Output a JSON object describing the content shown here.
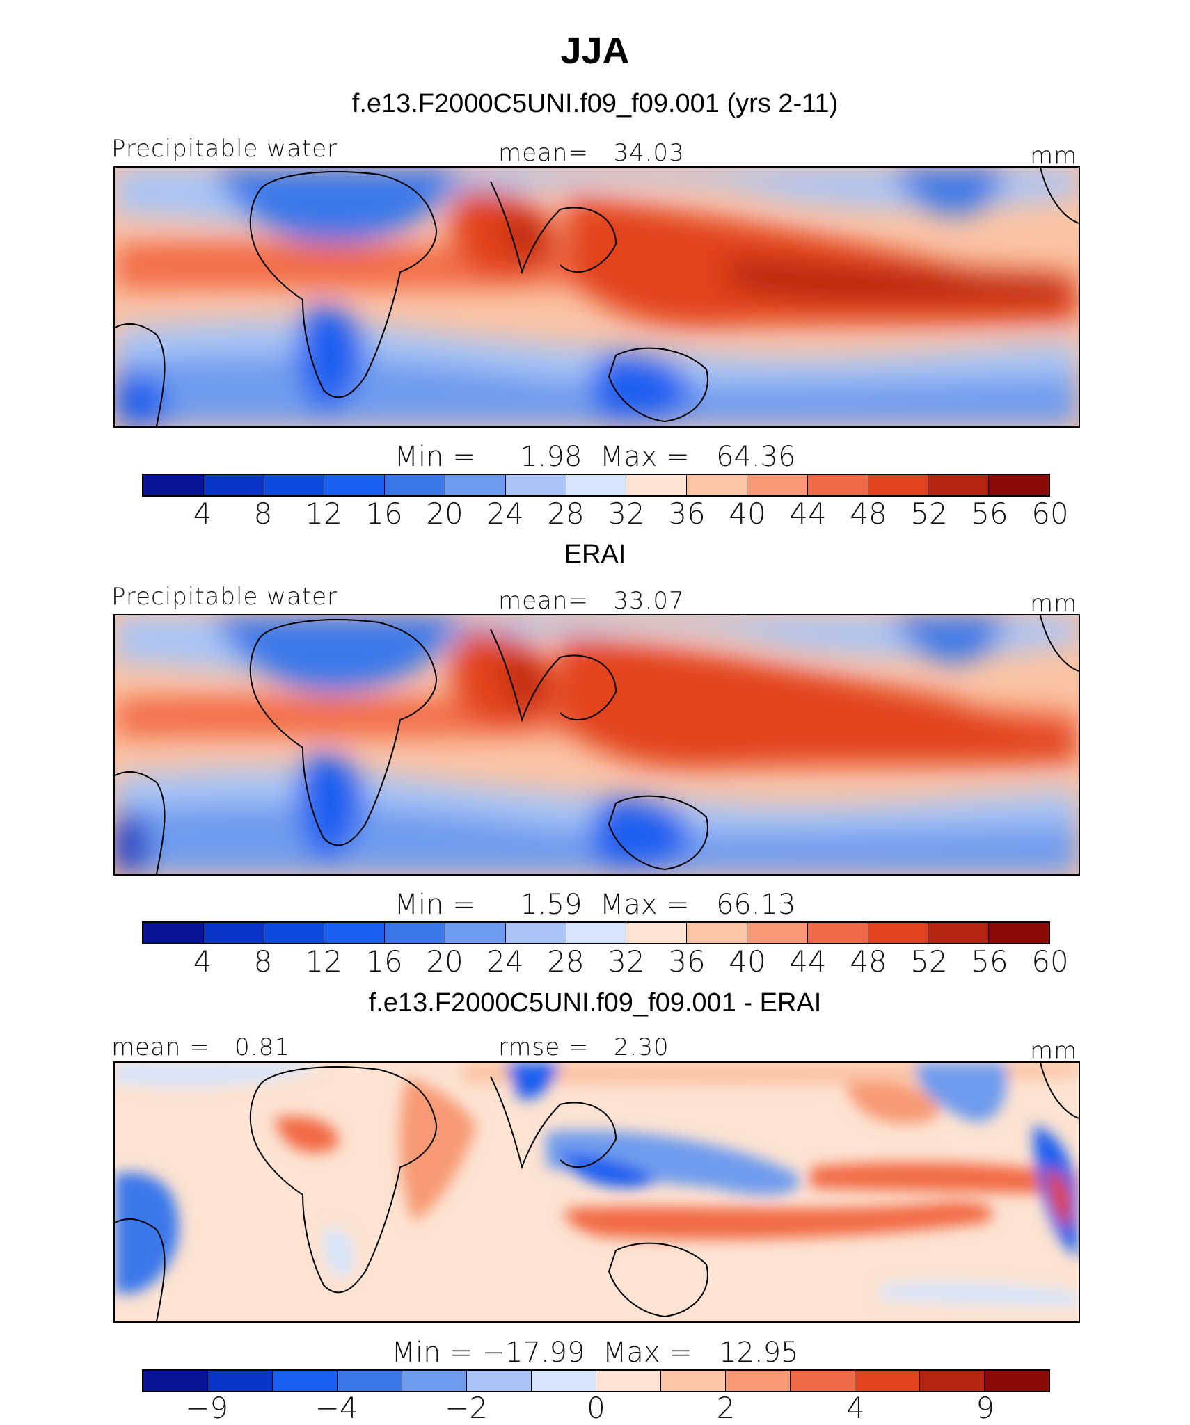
{
  "season": "JJA",
  "chart_data": [
    {
      "type": "heatmap",
      "title": "f.e13.F2000C5UNI.f09_f09.001 (yrs 2-11)",
      "variable": "Precipitable water",
      "units": "mm",
      "mean_label": "mean=",
      "mean": "34.03",
      "min_label": "Min =",
      "min": "1.98",
      "max_label": "Max =",
      "max": "64.36",
      "levels": [
        "4",
        "8",
        "12",
        "16",
        "20",
        "24",
        "28",
        "32",
        "36",
        "40",
        "44",
        "48",
        "52",
        "56",
        "60"
      ],
      "colors": [
        "#08139a",
        "#0a36c8",
        "#0d4be0",
        "#1b5ff0",
        "#3b78ea",
        "#6f9cee",
        "#a9c5f6",
        "#d6e5fb",
        "#fde3d2",
        "#fbc4a4",
        "#f79a74",
        "#f26a45",
        "#e2421f",
        "#b72511",
        "#8a0b06"
      ]
    },
    {
      "type": "heatmap",
      "title": "ERAI",
      "variable": "Precipitable water",
      "units": "mm",
      "mean_label": "mean=",
      "mean": "33.07",
      "min_label": "Min =",
      "min": "1.59",
      "max_label": "Max =",
      "max": "66.13",
      "levels": [
        "4",
        "8",
        "12",
        "16",
        "20",
        "24",
        "28",
        "32",
        "36",
        "40",
        "44",
        "48",
        "52",
        "56",
        "60"
      ],
      "colors": [
        "#08139a",
        "#0a36c8",
        "#0d4be0",
        "#1b5ff0",
        "#3b78ea",
        "#6f9cee",
        "#a9c5f6",
        "#d6e5fb",
        "#fde3d2",
        "#fbc4a4",
        "#f79a74",
        "#f26a45",
        "#e2421f",
        "#b72511",
        "#8a0b06"
      ]
    },
    {
      "type": "heatmap",
      "title": "f.e13.F2000C5UNI.f09_f09.001 - ERAI",
      "units": "mm",
      "mean_label": "mean =",
      "mean": "0.81",
      "rmse_label": "rmse =",
      "rmse": "2.30",
      "min_label": "Min =",
      "min": "−17.99",
      "max_label": "Max =",
      "max": "12.95",
      "levels": [
        "−9",
        "−4",
        "−2",
        "0",
        "2",
        "4",
        "9"
      ],
      "colors": [
        "#08139a",
        "#0a36c8",
        "#1b5ff0",
        "#3b78ea",
        "#6f9cee",
        "#a9c5f6",
        "#d6e5fb",
        "#fde3d2",
        "#fbc4a4",
        "#f79a74",
        "#f26a45",
        "#e2421f",
        "#b72511",
        "#8a0b06"
      ]
    }
  ]
}
